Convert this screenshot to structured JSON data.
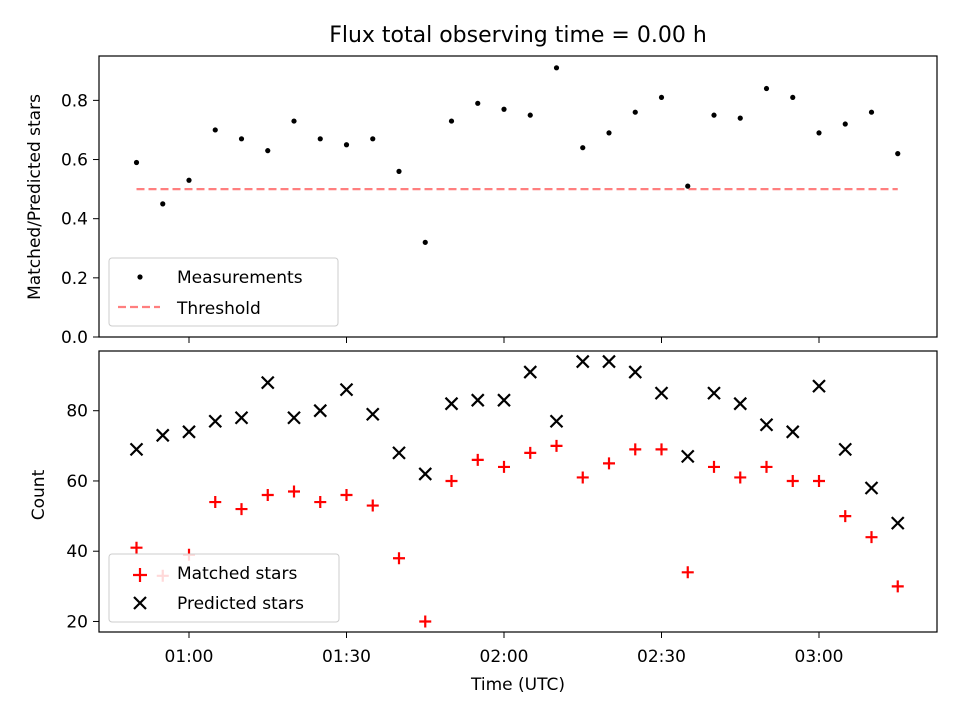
{
  "title": "Flux total observing time = 0.00 h",
  "chart_data": [
    {
      "type": "scatter",
      "ylabel": "Matched/Predicted stars",
      "ylim": [
        0.0,
        0.95
      ],
      "yticks": [
        "0.0",
        "0.2",
        "0.4",
        "0.6",
        "0.8"
      ],
      "grid": false,
      "legend_position": "lower-left",
      "x": [
        "00:50",
        "00:55",
        "01:00",
        "01:05",
        "01:10",
        "01:15",
        "01:20",
        "01:25",
        "01:30",
        "01:35",
        "01:40",
        "01:45",
        "01:50",
        "01:55",
        "02:00",
        "02:05",
        "02:10",
        "02:15",
        "02:20",
        "02:25",
        "02:30",
        "02:35",
        "02:40",
        "02:45",
        "02:50",
        "02:55",
        "03:00",
        "03:05",
        "03:10",
        "03:15"
      ],
      "series": [
        {
          "name": "Measurements",
          "color": "#000000",
          "marker": "dot",
          "values": [
            0.59,
            0.45,
            0.53,
            0.7,
            0.67,
            0.63,
            0.73,
            0.67,
            0.65,
            0.67,
            0.56,
            0.32,
            0.73,
            0.79,
            0.77,
            0.75,
            0.91,
            0.64,
            0.69,
            0.76,
            0.81,
            0.51,
            0.75,
            0.74,
            0.84,
            0.81,
            0.69,
            0.72,
            0.76,
            0.62
          ]
        },
        {
          "name": "Threshold",
          "color": "#ff7f7f",
          "style": "dashed",
          "values": [
            0.5,
            0.5
          ]
        }
      ]
    },
    {
      "type": "scatter",
      "ylabel": "Count",
      "xlabel": "Time (UTC)",
      "ylim": [
        17,
        97
      ],
      "yticks": [
        "20",
        "40",
        "60",
        "80"
      ],
      "xticks": [
        "01:00",
        "01:30",
        "02:00",
        "02:30",
        "03:00"
      ],
      "grid": false,
      "legend_position": "lower-left",
      "x": [
        "00:50",
        "00:55",
        "01:00",
        "01:05",
        "01:10",
        "01:15",
        "01:20",
        "01:25",
        "01:30",
        "01:35",
        "01:40",
        "01:45",
        "01:50",
        "01:55",
        "02:00",
        "02:05",
        "02:10",
        "02:15",
        "02:20",
        "02:25",
        "02:30",
        "02:35",
        "02:40",
        "02:45",
        "02:50",
        "02:55",
        "03:00",
        "03:05",
        "03:10",
        "03:15"
      ],
      "series": [
        {
          "name": "Matched stars",
          "color": "#ff0000",
          "marker": "plus",
          "values": [
            41,
            33,
            39,
            54,
            52,
            56,
            57,
            54,
            56,
            53,
            38,
            20,
            60,
            66,
            64,
            68,
            70,
            61,
            65,
            69,
            69,
            34,
            64,
            61,
            64,
            60,
            60,
            50,
            44,
            30
          ]
        },
        {
          "name": "Predicted stars",
          "color": "#000000",
          "marker": "x",
          "values": [
            69,
            73,
            74,
            77,
            78,
            88,
            78,
            80,
            86,
            79,
            68,
            62,
            82,
            83,
            83,
            91,
            77,
            94,
            94,
            91,
            85,
            67,
            85,
            82,
            76,
            74,
            87,
            69,
            58,
            48
          ]
        }
      ]
    }
  ]
}
